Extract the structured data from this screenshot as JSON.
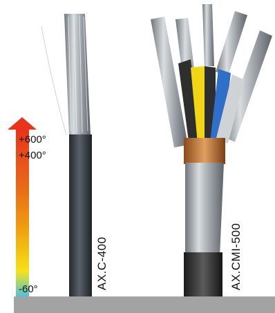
{
  "temperature_scale": {
    "gradient_colors": [
      "#e8341c",
      "#e86a18",
      "#f0a010",
      "#f6e21a",
      "#4fc3d9"
    ],
    "arrow_color": "#e8341c",
    "markers": [
      {
        "label": "+600°",
        "value": 600
      },
      {
        "label": "+400°",
        "value": 400
      },
      {
        "label": "-60°",
        "value": -60
      }
    ]
  },
  "products": [
    {
      "name": "AX.C-400",
      "wire_colors": [
        "#9aa0a6"
      ],
      "sheath_color": "#3a3f46"
    },
    {
      "name": "AX.CMI-500",
      "wire_colors": [
        "#2e2e2e",
        "#f2d418",
        "#2e2e2e",
        "#2f6fc8",
        "#cfd3d6"
      ],
      "sheath_color": "#3a3a3a"
    }
  ],
  "ground_color": "#a3a3a3"
}
